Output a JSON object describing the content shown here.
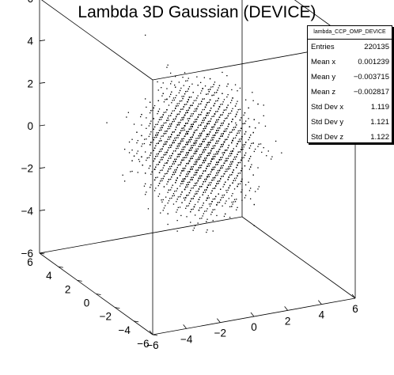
{
  "chart_data": {
    "type": "scatter",
    "title": "Lambda 3D Gaussian (DEVICE)",
    "dimensions": 3,
    "distribution": "3D Gaussian, mean ~0, std dev ~1.12 on each axis",
    "axes": {
      "x": {
        "range": [
          -6,
          6
        ],
        "ticks": [
          "−6",
          "−4",
          "−2",
          "0",
          "2",
          "4",
          "6"
        ]
      },
      "y": {
        "range": [
          -6,
          6
        ],
        "ticks": [
          "−6",
          "−4",
          "−2",
          "0",
          "2",
          "4",
          "6"
        ]
      },
      "z": {
        "range": [
          -6,
          6
        ],
        "ticks": [
          "−6",
          "−4",
          "−2",
          "0",
          "2",
          "4",
          "6"
        ]
      }
    },
    "stats_box": {
      "name": "lambda_CCP_OMP_DEVICE",
      "rows": [
        {
          "label": "Entries",
          "value": "220135"
        },
        {
          "label": "Mean x",
          "value": "0.001239"
        },
        {
          "label": "Mean y",
          "value": "−0.003715"
        },
        {
          "label": "Mean z",
          "value": "−0.002817"
        },
        {
          "label": "Std Dev x",
          "value": "1.119"
        },
        {
          "label": "Std Dev y",
          "value": "1.121"
        },
        {
          "label": "Std Dev z",
          "value": "1.122"
        }
      ]
    },
    "grid": false,
    "legend": "stats box top-right"
  },
  "colors": {
    "marker": "#000000",
    "frame": "#000000",
    "background": "#ffffff"
  }
}
